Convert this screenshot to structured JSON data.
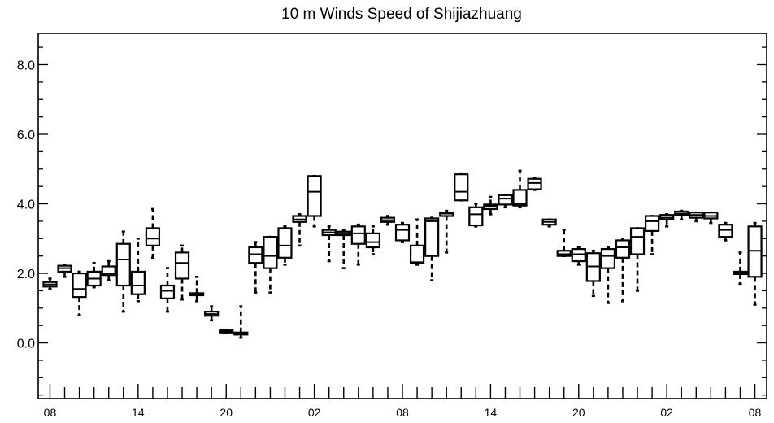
{
  "chart_data": {
    "type": "box",
    "title": "10 m Winds Speed of Shijiazhuang",
    "xlabel": "",
    "ylabel": "",
    "ylim": [
      -1.6,
      8.9
    ],
    "yticks_major": [
      0.0,
      2.0,
      4.0,
      6.0,
      8.0
    ],
    "ytick_labels": [
      "0.0",
      "2.0",
      "4.0",
      "6.0",
      "8.0"
    ],
    "yminor_step": 0.5,
    "xlim": [
      -0.8,
      48.8
    ],
    "x_tick_labels": [
      {
        "pos": 0,
        "label": "08"
      },
      {
        "pos": 6,
        "label": "14"
      },
      {
        "pos": 12,
        "label": "20"
      },
      {
        "pos": 18,
        "label": "02"
      },
      {
        "pos": 24,
        "label": "08"
      },
      {
        "pos": 30,
        "label": "14"
      },
      {
        "pos": 36,
        "label": "20"
      },
      {
        "pos": 42,
        "label": "02"
      },
      {
        "pos": 48,
        "label": "08"
      }
    ],
    "grid": false,
    "boxes": [
      {
        "x": 0,
        "min": 1.55,
        "q1": 1.62,
        "median": 1.68,
        "q3": 1.75,
        "max": 1.85
      },
      {
        "x": 1,
        "min": 1.9,
        "q1": 2.05,
        "median": 2.15,
        "q3": 2.22,
        "max": 2.25
      },
      {
        "x": 2,
        "min": 0.8,
        "q1": 1.32,
        "median": 1.55,
        "q3": 2.0,
        "max": 2.05
      },
      {
        "x": 3,
        "min": 1.6,
        "q1": 1.65,
        "median": 1.85,
        "q3": 2.05,
        "max": 2.3
      },
      {
        "x": 4,
        "min": 1.8,
        "q1": 1.95,
        "median": 2.0,
        "q3": 2.2,
        "max": 2.35
      },
      {
        "x": 5,
        "min": 0.9,
        "q1": 1.65,
        "median": 2.4,
        "q3": 2.85,
        "max": 3.2
      },
      {
        "x": 6,
        "min": 1.2,
        "q1": 1.4,
        "median": 1.65,
        "q3": 2.05,
        "max": 3.0
      },
      {
        "x": 7,
        "min": 2.45,
        "q1": 2.8,
        "median": 3.0,
        "q3": 3.3,
        "max": 3.85
      },
      {
        "x": 8,
        "min": 0.9,
        "q1": 1.28,
        "median": 1.5,
        "q3": 1.65,
        "max": 2.15
      },
      {
        "x": 9,
        "min": 1.25,
        "q1": 1.85,
        "median": 2.3,
        "q3": 2.6,
        "max": 2.8
      },
      {
        "x": 10,
        "min": 1.2,
        "q1": 1.37,
        "median": 1.4,
        "q3": 1.43,
        "max": 1.9
      },
      {
        "x": 11,
        "min": 0.65,
        "q1": 0.78,
        "median": 0.83,
        "q3": 0.9,
        "max": 1.05
      },
      {
        "x": 12,
        "min": 0.28,
        "q1": 0.3,
        "median": 0.33,
        "q3": 0.36,
        "max": 0.38
      },
      {
        "x": 13,
        "min": 0.15,
        "q1": 0.24,
        "median": 0.27,
        "q3": 0.3,
        "max": 1.05
      },
      {
        "x": 14,
        "min": 1.45,
        "q1": 2.3,
        "median": 2.55,
        "q3": 2.75,
        "max": 2.9
      },
      {
        "x": 15,
        "min": 1.45,
        "q1": 2.15,
        "median": 2.5,
        "q3": 3.05,
        "max": 3.05
      },
      {
        "x": 16,
        "min": 2.25,
        "q1": 2.45,
        "median": 2.8,
        "q3": 3.3,
        "max": 3.35
      },
      {
        "x": 17,
        "min": 2.8,
        "q1": 3.48,
        "median": 3.55,
        "q3": 3.65,
        "max": 3.7
      },
      {
        "x": 18,
        "min": 3.35,
        "q1": 3.65,
        "median": 4.35,
        "q3": 4.8,
        "max": 4.8
      },
      {
        "x": 19,
        "min": 2.35,
        "q1": 3.1,
        "median": 3.18,
        "q3": 3.25,
        "max": 3.35
      },
      {
        "x": 20,
        "min": 2.15,
        "q1": 3.1,
        "median": 3.15,
        "q3": 3.2,
        "max": 3.25
      },
      {
        "x": 21,
        "min": 2.25,
        "q1": 2.85,
        "median": 3.15,
        "q3": 3.35,
        "max": 3.4
      },
      {
        "x": 22,
        "min": 2.55,
        "q1": 2.75,
        "median": 2.9,
        "q3": 3.15,
        "max": 3.35
      },
      {
        "x": 23,
        "min": 3.4,
        "q1": 3.48,
        "median": 3.53,
        "q3": 3.6,
        "max": 3.65
      },
      {
        "x": 24,
        "min": 2.9,
        "q1": 2.95,
        "median": 3.25,
        "q3": 3.4,
        "max": 3.45
      },
      {
        "x": 25,
        "min": 2.25,
        "q1": 2.3,
        "median": 2.32,
        "q3": 2.8,
        "max": 3.55
      },
      {
        "x": 26,
        "min": 1.8,
        "q1": 2.5,
        "median": 3.5,
        "q3": 3.58,
        "max": 3.6
      },
      {
        "x": 27,
        "min": 2.6,
        "q1": 3.65,
        "median": 3.72,
        "q3": 3.75,
        "max": 3.8
      },
      {
        "x": 28,
        "min": 4.1,
        "q1": 4.1,
        "median": 4.35,
        "q3": 4.85,
        "max": 4.85
      },
      {
        "x": 29,
        "min": 3.35,
        "q1": 3.38,
        "median": 3.7,
        "q3": 3.9,
        "max": 4.0
      },
      {
        "x": 30,
        "min": 3.7,
        "q1": 3.85,
        "median": 3.93,
        "q3": 3.98,
        "max": 4.2
      },
      {
        "x": 31,
        "min": 3.9,
        "q1": 3.98,
        "median": 4.15,
        "q3": 4.25,
        "max": 4.25
      },
      {
        "x": 32,
        "min": 3.9,
        "q1": 3.95,
        "median": 4.0,
        "q3": 4.4,
        "max": 4.95
      },
      {
        "x": 33,
        "min": 4.4,
        "q1": 4.42,
        "median": 4.6,
        "q3": 4.72,
        "max": 4.75
      },
      {
        "x": 34,
        "min": 3.35,
        "q1": 3.4,
        "median": 3.48,
        "q3": 3.55,
        "max": 3.55
      },
      {
        "x": 35,
        "min": 2.5,
        "q1": 2.5,
        "median": 2.55,
        "q3": 2.65,
        "max": 3.25
      },
      {
        "x": 36,
        "min": 2.25,
        "q1": 2.35,
        "median": 2.55,
        "q3": 2.7,
        "max": 2.75
      },
      {
        "x": 37,
        "min": 1.35,
        "q1": 1.78,
        "median": 2.2,
        "q3": 2.58,
        "max": 2.65
      },
      {
        "x": 38,
        "min": 1.15,
        "q1": 2.15,
        "median": 2.5,
        "q3": 2.7,
        "max": 2.75
      },
      {
        "x": 39,
        "min": 1.2,
        "q1": 2.45,
        "median": 2.75,
        "q3": 2.95,
        "max": 3.0
      },
      {
        "x": 40,
        "min": 1.5,
        "q1": 2.55,
        "median": 3.05,
        "q3": 3.3,
        "max": 3.3
      },
      {
        "x": 41,
        "min": 2.55,
        "q1": 3.22,
        "median": 3.5,
        "q3": 3.65,
        "max": 3.65
      },
      {
        "x": 42,
        "min": 3.35,
        "q1": 3.55,
        "median": 3.6,
        "q3": 3.68,
        "max": 3.7
      },
      {
        "x": 43,
        "min": 3.55,
        "q1": 3.67,
        "median": 3.72,
        "q3": 3.78,
        "max": 3.8
      },
      {
        "x": 44,
        "min": 3.5,
        "q1": 3.6,
        "median": 3.68,
        "q3": 3.75,
        "max": 3.75
      },
      {
        "x": 45,
        "min": 3.45,
        "q1": 3.58,
        "median": 3.65,
        "q3": 3.75,
        "max": 3.75
      },
      {
        "x": 46,
        "min": 2.95,
        "q1": 3.05,
        "median": 3.25,
        "q3": 3.4,
        "max": 3.45
      },
      {
        "x": 47,
        "min": 1.7,
        "q1": 1.98,
        "median": 2.0,
        "q3": 2.05,
        "max": 2.6
      },
      {
        "x": 48,
        "min": 1.1,
        "q1": 1.9,
        "median": 2.65,
        "q3": 3.35,
        "max": 3.45
      }
    ]
  }
}
